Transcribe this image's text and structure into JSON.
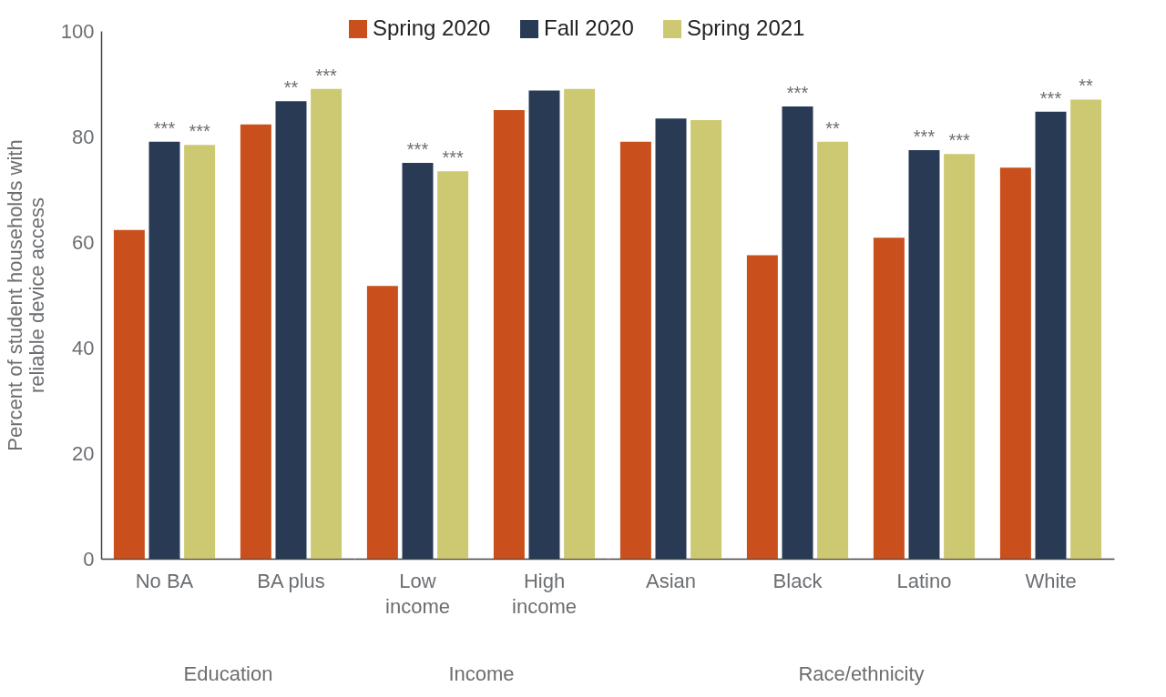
{
  "chart_data": [
    {
      "type": "bar",
      "xlabel": "Education",
      "ylabel": "Percent of student households with reliable device access",
      "categories": [
        "No BA",
        "BA plus"
      ],
      "ylim": [
        0,
        100
      ],
      "yticks": [
        0,
        20,
        40,
        60,
        80,
        100
      ],
      "legend": "top",
      "series": [
        {
          "name": "Spring 2020",
          "color": "#c9501c",
          "values": [
            62.3,
            82.3
          ],
          "value_labels": [
            null,
            null
          ]
        },
        {
          "name": "Fall 2020",
          "color": "#283a54",
          "values": [
            79.0,
            86.7
          ],
          "value_labels": [
            "***",
            "**"
          ]
        },
        {
          "name": "Spring 2021",
          "color": "#cdc973",
          "values": [
            78.4,
            89.0
          ],
          "value_labels": [
            "***",
            "***"
          ]
        }
      ]
    },
    {
      "type": "bar",
      "xlabel": "Income",
      "categories": [
        "Low income",
        "High income"
      ],
      "ylim": [
        0,
        100
      ],
      "tick_labels": "x",
      "legend": "top",
      "series": [
        {
          "name": "Spring 2020",
          "color": "#c9501c",
          "values": [
            51.7,
            85.0
          ],
          "value_labels": [
            null,
            null
          ]
        },
        {
          "name": "Fall 2020",
          "color": "#283a54",
          "values": [
            75.0,
            88.7
          ],
          "value_labels": [
            "***",
            null
          ]
        },
        {
          "name": "Spring 2021",
          "color": "#cdc973",
          "values": [
            73.4,
            89.0
          ],
          "value_labels": [
            "***",
            null
          ]
        }
      ]
    },
    {
      "type": "bar",
      "xlabel": "Race/ethnicity",
      "categories": [
        "Asian",
        "Black",
        "Latino",
        "White"
      ],
      "ylim": [
        0,
        100
      ],
      "tick_labels": "x",
      "legend": "top",
      "series": [
        {
          "name": "Spring 2020",
          "color": "#c9501c",
          "values": [
            79.0,
            57.5,
            60.8,
            74.1
          ],
          "value_labels": [
            null,
            null,
            null,
            null
          ]
        },
        {
          "name": "Fall 2020",
          "color": "#283a54",
          "values": [
            83.4,
            85.7,
            77.4,
            84.7
          ],
          "value_labels": [
            null,
            "***",
            "***",
            "***"
          ]
        },
        {
          "name": "Spring 2021",
          "color": "#cdc973",
          "values": [
            83.1,
            79.0,
            76.7,
            87.0
          ],
          "value_labels": [
            null,
            "**",
            "***",
            "**"
          ]
        }
      ]
    }
  ]
}
